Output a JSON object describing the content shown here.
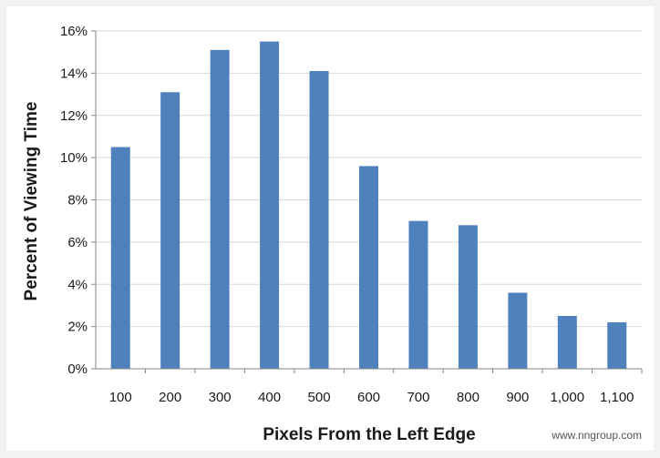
{
  "chart_data": {
    "type": "bar",
    "categories": [
      "100",
      "200",
      "300",
      "400",
      "500",
      "600",
      "700",
      "800",
      "900",
      "1,000",
      "1,100"
    ],
    "values": [
      10.5,
      13.1,
      15.1,
      15.5,
      14.1,
      9.6,
      7.0,
      6.8,
      3.6,
      2.5,
      2.2
    ],
    "xlabel": "Pixels From the Left Edge",
    "ylabel": "Percent of Viewing Time",
    "ylim": [
      0,
      16
    ],
    "yticks": [
      0,
      2,
      4,
      6,
      8,
      10,
      12,
      14,
      16
    ],
    "ytick_labels": [
      "0%",
      "2%",
      "4%",
      "6%",
      "8%",
      "10%",
      "12%",
      "14%",
      "16%"
    ],
    "grid": "horizontal",
    "bar_color": "#4f81bd",
    "grid_color": "#d9d9d9"
  },
  "credit": "www.nngroup.com"
}
